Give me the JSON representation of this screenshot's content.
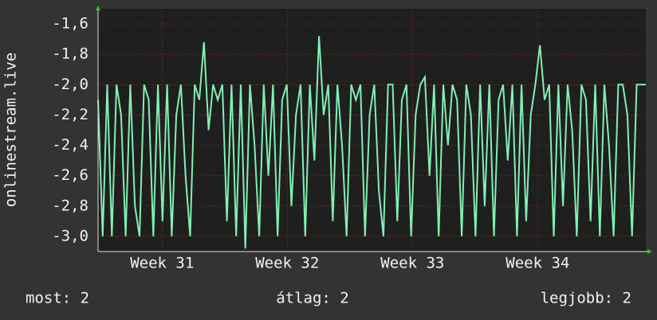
{
  "chart_data": {
    "type": "line",
    "ylabel": "onlinestream.live",
    "values": [
      -2.1,
      -3,
      -2,
      -3,
      -2,
      -2.2,
      -3,
      -2,
      -2.8,
      -3,
      -2,
      -2.1,
      -3,
      -2,
      -2.9,
      -2,
      -3,
      -2.2,
      -2,
      -2.6,
      -3,
      -2,
      -2.1,
      -1.72,
      -2.3,
      -2,
      -2.1,
      -2,
      -2.9,
      -2,
      -3,
      -2,
      -3.08,
      -2,
      -2.4,
      -3,
      -2,
      -2.6,
      -2,
      -3,
      -2.1,
      -2,
      -2.8,
      -2.2,
      -2,
      -3,
      -2,
      -2.5,
      -1.68,
      -2.2,
      -2,
      -2.9,
      -2,
      -2.4,
      -3,
      -2,
      -2.1,
      -2,
      -3,
      -2.2,
      -2,
      -2.7,
      -3,
      -2,
      -2,
      -2.9,
      -2.1,
      -2,
      -3,
      -2.2,
      -2,
      -1.95,
      -2.6,
      -2,
      -3,
      -2,
      -2.4,
      -2,
      -2.1,
      -3,
      -2,
      -2.2,
      -3,
      -2,
      -2.8,
      -2,
      -3,
      -2.1,
      -2,
      -2.5,
      -2,
      -3,
      -2,
      -2.9,
      -2.2,
      -2,
      -1.74,
      -2.1,
      -2,
      -3,
      -2,
      -2.8,
      -2,
      -2.3,
      -3,
      -2,
      -2.1,
      -2.9,
      -2,
      -3,
      -2,
      -2.4,
      -3,
      -2,
      -2,
      -2.2,
      -3,
      -2,
      -2,
      -2
    ],
    "color": "#80f0b4",
    "xlim": [
      0,
      119
    ],
    "xticks": [
      {
        "value": 13.9,
        "label": "Week 31"
      },
      {
        "value": 41.1,
        "label": "Week 32"
      },
      {
        "value": 68.3,
        "label": "Week 33"
      },
      {
        "value": 95.5,
        "label": "Week 34"
      }
    ],
    "ylim": [
      -3.1,
      -1.5
    ],
    "yticks": [
      {
        "value": -3.0,
        "label": "-3,0"
      },
      {
        "value": -2.8,
        "label": "-2,8"
      },
      {
        "value": -2.6,
        "label": "-2,6"
      },
      {
        "value": -2.4,
        "label": "-2,4"
      },
      {
        "value": -2.2,
        "label": "-2,2"
      },
      {
        "value": -2.0,
        "label": "-2,0"
      },
      {
        "value": -1.8,
        "label": "-1,8"
      },
      {
        "value": -1.6,
        "label": "-1,6"
      }
    ],
    "grid": true,
    "stats": [
      "most: 2",
      "átlag: 2",
      "legjobb: 2"
    ]
  }
}
